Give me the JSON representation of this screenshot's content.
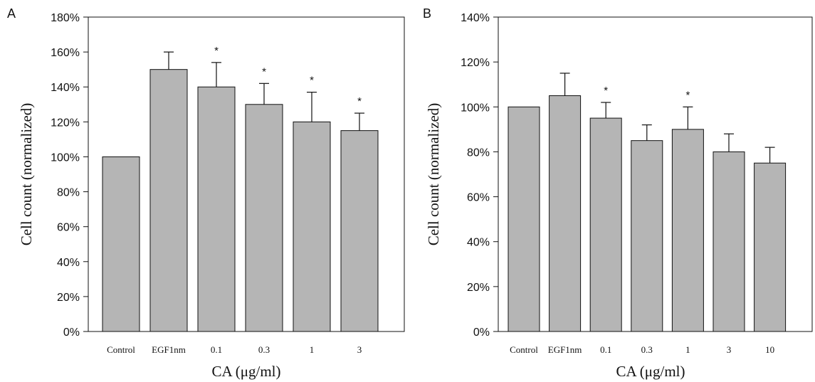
{
  "chart_data": [
    {
      "panel_label": "A",
      "type": "bar",
      "categories": [
        "Control",
        "EGF1nm",
        "0.1",
        "0.3",
        "1",
        "3"
      ],
      "values": [
        100,
        150,
        140,
        130,
        120,
        115
      ],
      "errors": [
        0,
        10,
        14,
        12,
        17,
        10
      ],
      "significant": [
        false,
        false,
        true,
        true,
        true,
        true
      ],
      "significance_marker": "*",
      "xlabel": "CA (μg/ml)",
      "ylabel": "Cell count (normalized)",
      "ylim": [
        0,
        180
      ],
      "yticks": [
        0,
        20,
        40,
        60,
        80,
        100,
        120,
        140,
        160,
        180
      ],
      "ytick_format": "percent",
      "bar_color": "#b5b5b5",
      "grid": false,
      "legend": "none"
    },
    {
      "panel_label": "B",
      "type": "bar",
      "categories": [
        "Control",
        "EGF1nm",
        "0.1",
        "0.3",
        "1",
        "3",
        "10"
      ],
      "values": [
        100,
        105,
        95,
        85,
        90,
        80,
        75
      ],
      "errors": [
        0,
        10,
        7,
        7,
        10,
        8,
        7
      ],
      "significant": [
        false,
        false,
        true,
        false,
        true,
        false,
        false
      ],
      "significance_marker": "*",
      "xlabel": "CA (μg/ml)",
      "ylabel": "Cell count (normalized)",
      "ylim": [
        0,
        140
      ],
      "yticks": [
        0,
        20,
        40,
        60,
        80,
        100,
        120,
        140
      ],
      "ytick_format": "percent",
      "bar_color": "#b5b5b5",
      "grid": false,
      "legend": "none"
    }
  ]
}
